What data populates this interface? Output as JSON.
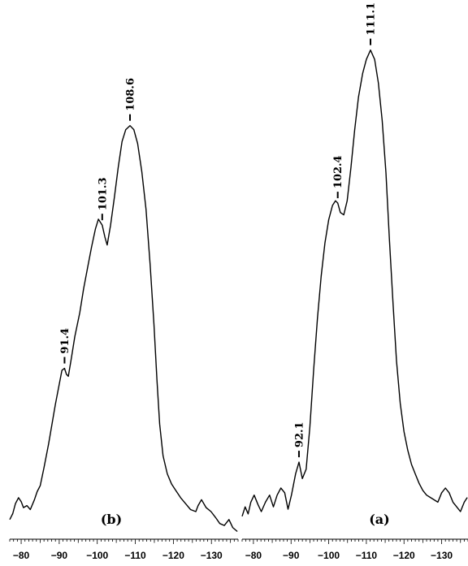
{
  "chart_data": [
    {
      "type": "line",
      "panel_label": "(b)",
      "xlim": [
        -77,
        -137
      ],
      "x_ticks": [
        -80,
        -90,
        -100,
        -110,
        -120,
        -130
      ],
      "x_tick_labels": [
        "−80",
        "−90",
        "−100",
        "−110",
        "−120",
        "−130"
      ],
      "peak_labels": [
        {
          "x": -91.4,
          "text": "91.4"
        },
        {
          "x": -101.3,
          "text": "101.3"
        },
        {
          "x": -108.6,
          "text": "108.6"
        }
      ],
      "series": [
        {
          "x": [
            -77.0,
            -77.8,
            -78.5,
            -79.3,
            -80.0,
            -80.6,
            -81.5,
            -82.4,
            -83.5,
            -84.2,
            -85.0,
            -86.0,
            -87.2,
            -88.1,
            -89.0,
            -90.0,
            -90.7,
            -91.4,
            -91.9,
            -92.4,
            -93.1,
            -94.1,
            -95.4,
            -96.4,
            -97.5,
            -98.5,
            -99.5,
            -100.3,
            -101.3,
            -102.0,
            -102.6,
            -103.5,
            -104.5,
            -105.5,
            -106.5,
            -107.5,
            -108.6,
            -109.6,
            -110.6,
            -111.7,
            -112.8,
            -113.9,
            -114.9,
            -115.7,
            -116.4,
            -117.3,
            -118.4,
            -119.5,
            -120.5,
            -121.9,
            -123.2,
            -124.5,
            -125.9,
            -126.5,
            -127.4,
            -128.6,
            -129.9,
            -131.1,
            -132.2,
            -133.4,
            -134.6,
            -135.6,
            -136.8
          ],
          "y": [
            -0.02,
            -0.005,
            0.02,
            0.035,
            0.025,
            0.01,
            0.015,
            0.005,
            0.03,
            0.05,
            0.065,
            0.11,
            0.17,
            0.22,
            0.27,
            0.32,
            0.355,
            0.36,
            0.345,
            0.34,
            0.38,
            0.44,
            0.5,
            0.56,
            0.615,
            0.665,
            0.71,
            0.735,
            0.72,
            0.69,
            0.67,
            0.72,
            0.79,
            0.865,
            0.93,
            0.96,
            0.97,
            0.96,
            0.925,
            0.855,
            0.76,
            0.62,
            0.47,
            0.33,
            0.22,
            0.14,
            0.095,
            0.07,
            0.055,
            0.035,
            0.02,
            0.005,
            0.0,
            0.015,
            0.03,
            0.01,
            0.0,
            -0.015,
            -0.03,
            -0.035,
            -0.02,
            -0.04,
            -0.05
          ]
        }
      ]
    },
    {
      "type": "line",
      "panel_label": "(a)",
      "xlim": [
        -77,
        -137
      ],
      "x_ticks": [
        -80,
        -90,
        -100,
        -110,
        -120,
        -130
      ],
      "x_tick_labels": [
        "−80",
        "−90",
        "−100",
        "−110",
        "−120",
        "−130"
      ],
      "peak_labels": [
        {
          "x": -92.1,
          "text": "92.1"
        },
        {
          "x": -102.4,
          "text": "102.4"
        },
        {
          "x": -111.1,
          "text": "111.1"
        }
      ],
      "series": [
        {
          "x": [
            -77.0,
            -77.8,
            -78.6,
            -79.3,
            -80.2,
            -81.2,
            -82.1,
            -83.2,
            -84.3,
            -85.3,
            -86.3,
            -87.3,
            -88.3,
            -89.2,
            -90.1,
            -91.2,
            -92.1,
            -93.0,
            -94.0,
            -95.0,
            -96.0,
            -97.0,
            -98.0,
            -99.0,
            -100.0,
            -101.0,
            -101.8,
            -102.4,
            -103.1,
            -104.0,
            -104.9,
            -105.9,
            -106.9,
            -107.9,
            -109.0,
            -110.0,
            -111.1,
            -112.2,
            -113.2,
            -114.2,
            -115.2,
            -116.1,
            -117.1,
            -118.0,
            -119.0,
            -120.0,
            -121.0,
            -122.0,
            -123.0,
            -124.0,
            -125.0,
            -126.0,
            -127.0,
            -128.0,
            -129.0,
            -130.0,
            -131.0,
            -132.0,
            -133.0,
            -134.0,
            -135.0,
            -136.0,
            -136.8
          ],
          "y": [
            -0.01,
            0.01,
            -0.005,
            0.02,
            0.035,
            0.015,
            0.0,
            0.02,
            0.035,
            0.01,
            0.035,
            0.05,
            0.04,
            0.005,
            0.035,
            0.08,
            0.105,
            0.07,
            0.09,
            0.18,
            0.3,
            0.41,
            0.5,
            0.57,
            0.62,
            0.65,
            0.66,
            0.655,
            0.635,
            0.63,
            0.66,
            0.73,
            0.81,
            0.88,
            0.93,
            0.96,
            0.98,
            0.96,
            0.91,
            0.83,
            0.72,
            0.58,
            0.44,
            0.32,
            0.23,
            0.17,
            0.13,
            0.1,
            0.08,
            0.06,
            0.045,
            0.035,
            0.03,
            0.025,
            0.02,
            0.04,
            0.05,
            0.04,
            0.02,
            0.01,
            0.0,
            0.02,
            0.03
          ]
        }
      ]
    }
  ]
}
